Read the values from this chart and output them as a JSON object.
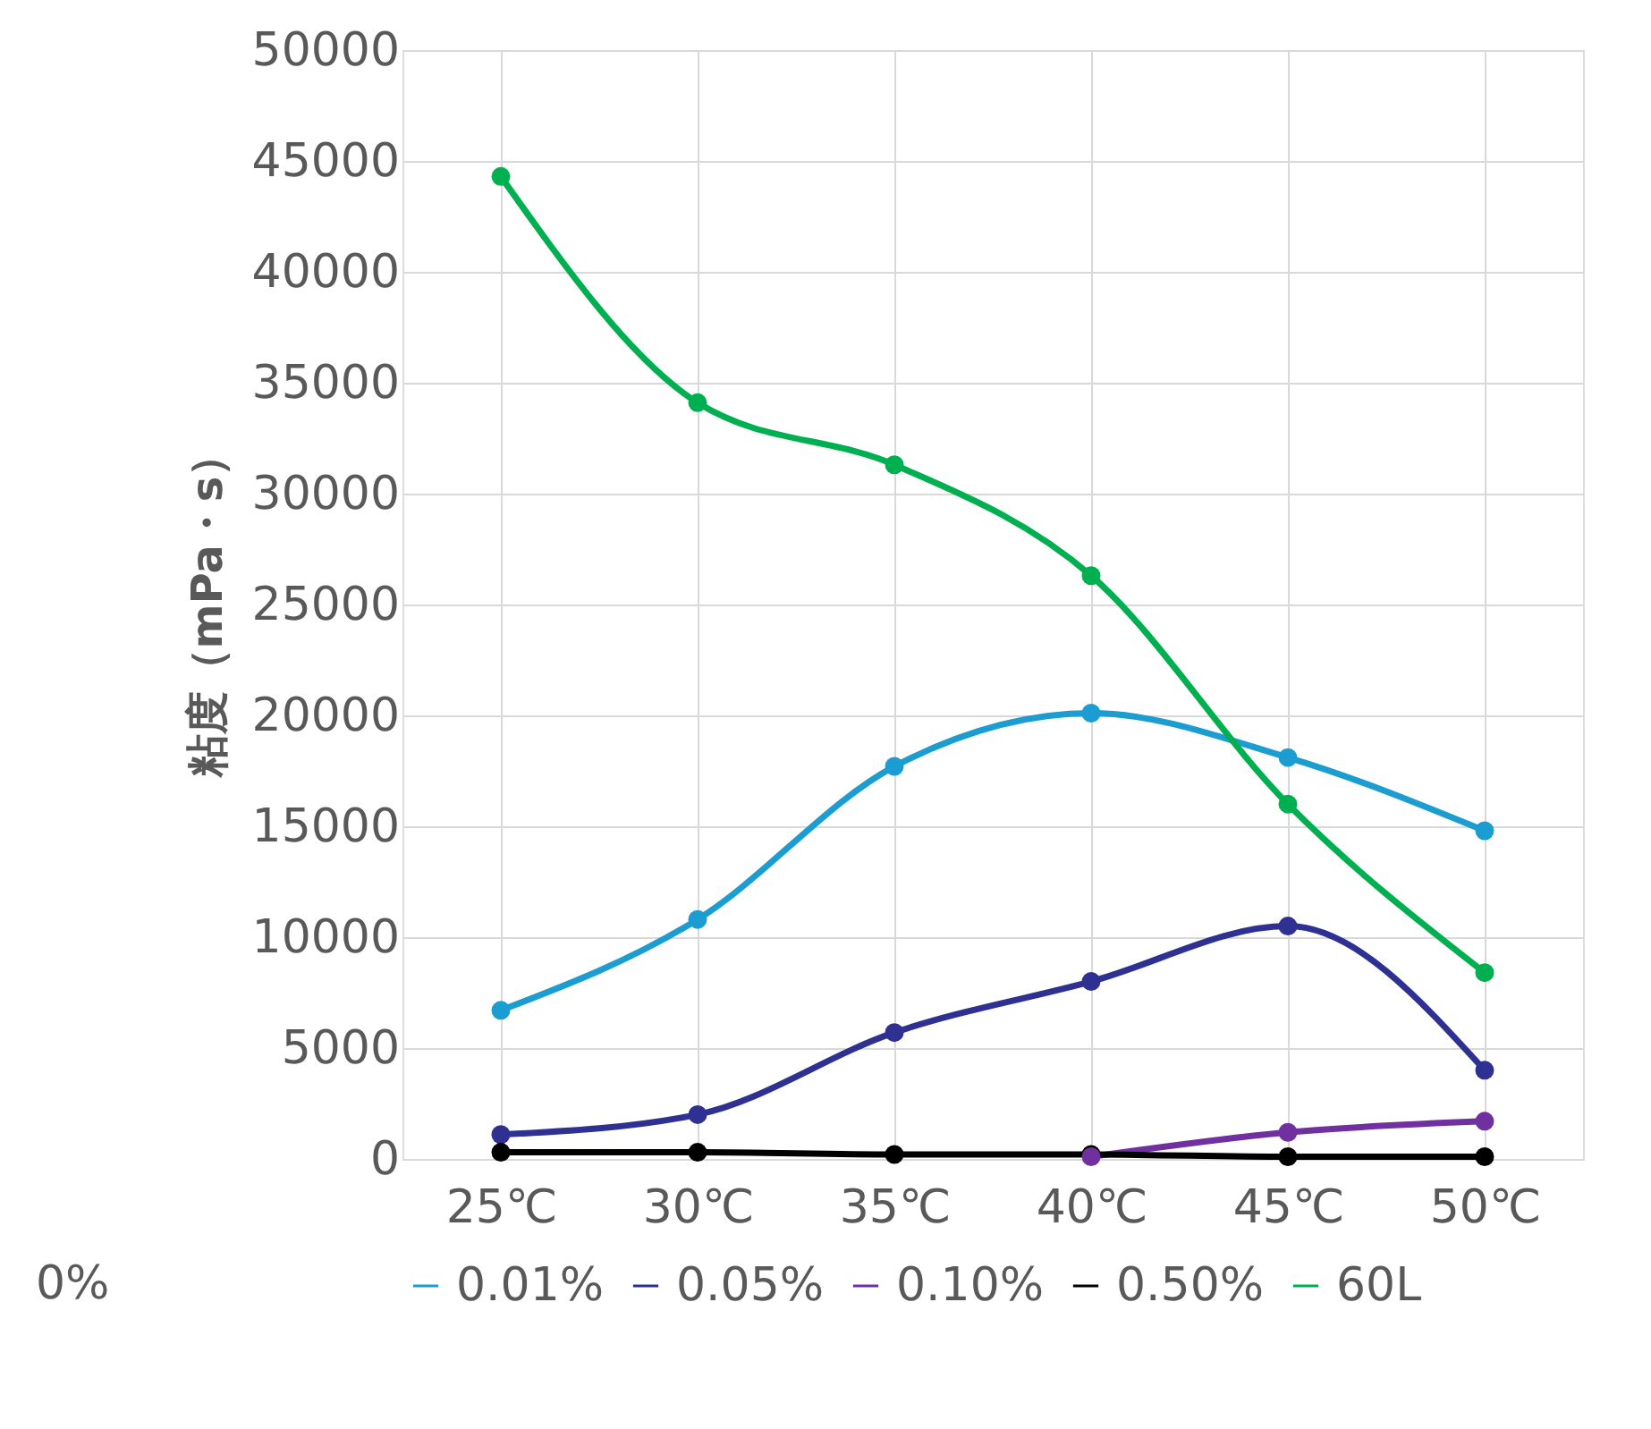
{
  "chart_data": {
    "type": "line",
    "ylabel": "粘度（mPa・s）",
    "categories": [
      "25℃",
      "30℃",
      "35℃",
      "40℃",
      "45℃",
      "50℃"
    ],
    "series": [
      {
        "name": "0.01%",
        "color": "#1b9dd1",
        "values": [
          6700,
          10800,
          17700,
          20100,
          18100,
          14800
        ]
      },
      {
        "name": "0.05%",
        "color": "#2e3192",
        "values": [
          1100,
          2000,
          5700,
          8000,
          10500,
          4000
        ]
      },
      {
        "name": "0.10%",
        "color": "#7030a0",
        "values": [
          null,
          null,
          null,
          100,
          1200,
          1700
        ]
      },
      {
        "name": "0.50%",
        "color": "#000000",
        "values": [
          300,
          300,
          200,
          200,
          100,
          100
        ]
      },
      {
        "name": "60L",
        "color": "#00b050",
        "values": [
          44300,
          34100,
          31300,
          26300,
          16000,
          8400
        ]
      }
    ],
    "ylim": [
      0,
      50000
    ],
    "yticks": [
      0,
      5000,
      10000,
      15000,
      20000,
      25000,
      30000,
      35000,
      40000,
      45000,
      50000
    ],
    "grid": true,
    "legend": "bottom",
    "marker": "circle",
    "line_style": "solid",
    "annotations": [
      "0%"
    ]
  }
}
